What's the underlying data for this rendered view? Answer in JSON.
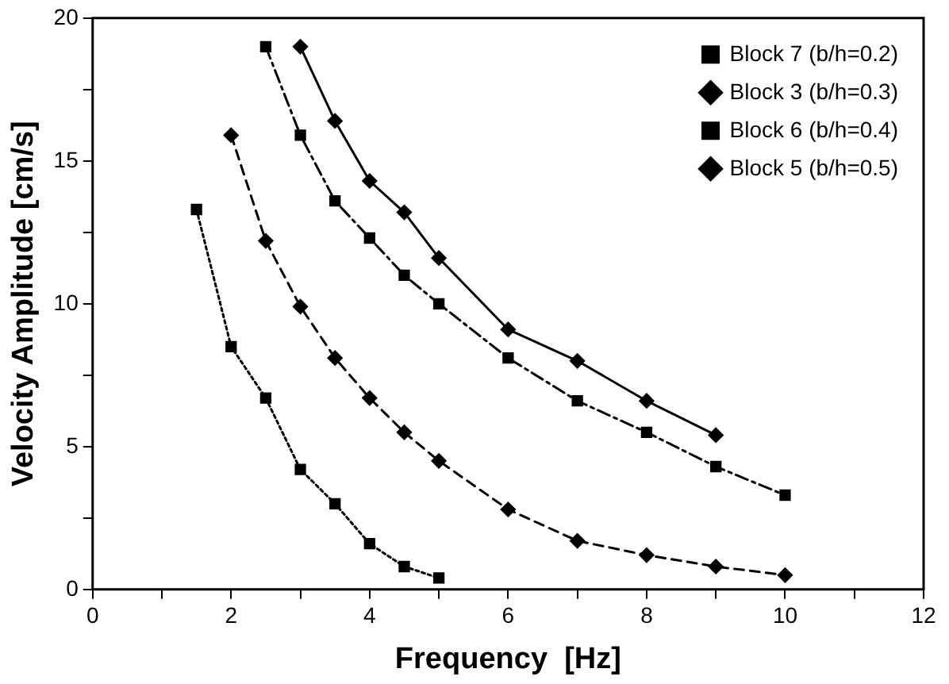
{
  "chart_data": {
    "type": "line",
    "xlabel": "Frequency  [Hz]",
    "ylabel": "Velocity Amplitude [cm/s]",
    "xlim": [
      0,
      12
    ],
    "xticks": [
      0,
      {
        "value": 1,
        "label": null
      },
      2,
      {
        "value": 3,
        "label": null
      },
      4,
      {
        "value": 5,
        "label": null
      },
      6,
      {
        "value": 7,
        "label": null
      },
      8,
      {
        "value": 9,
        "label": null
      },
      10,
      {
        "value": 11,
        "label": null
      },
      12
    ],
    "ylim": [
      0,
      20
    ],
    "yticks": [
      0,
      {
        "value": 2.5,
        "label": null
      },
      5,
      {
        "value": 7.5,
        "label": null
      },
      10,
      {
        "value": 12.5,
        "label": null
      },
      15,
      {
        "value": 17.5,
        "label": null
      },
      20
    ],
    "grid": false,
    "legend": "top right",
    "series": [
      {
        "name": "Block 7 (b/h=0.2)",
        "color": "#000000",
        "marker": "square",
        "line_style": "dotted",
        "x": [
          1.5,
          2,
          2.5,
          3,
          3.5,
          4,
          4.5,
          5
        ],
        "values": [
          13.3,
          8.5,
          6.7,
          4.2,
          3.0,
          1.6,
          0.8,
          0.4
        ]
      },
      {
        "name": "Block 3 (b/h=0.3)",
        "color": "#000000",
        "marker": "diamond",
        "line_style": "dashed",
        "x": [
          2,
          2.5,
          3,
          3.5,
          4,
          4.5,
          5,
          6,
          7,
          8,
          9,
          10
        ],
        "values": [
          15.9,
          12.2,
          9.9,
          8.1,
          6.7,
          5.5,
          4.5,
          2.8,
          1.7,
          1.2,
          0.8,
          0.5
        ]
      },
      {
        "name": "Block 6 (b/h=0.4)",
        "color": "#000000",
        "marker": "square",
        "line_style": "dashdot",
        "x": [
          2.5,
          3,
          3.5,
          4,
          4.5,
          5,
          6,
          7,
          8,
          9,
          10
        ],
        "values": [
          19.0,
          15.9,
          13.6,
          12.3,
          11.0,
          10.0,
          8.1,
          6.6,
          5.5,
          4.3,
          3.3
        ]
      },
      {
        "name": "Block 5 (b/h=0.5)",
        "color": "#000000",
        "marker": "diamond",
        "line_style": "solid",
        "x": [
          3,
          3.5,
          4,
          4.5,
          5,
          6,
          7,
          8,
          9
        ],
        "values": [
          19.0,
          16.4,
          14.3,
          13.2,
          11.6,
          9.1,
          8.0,
          6.6,
          5.4
        ]
      }
    ]
  }
}
